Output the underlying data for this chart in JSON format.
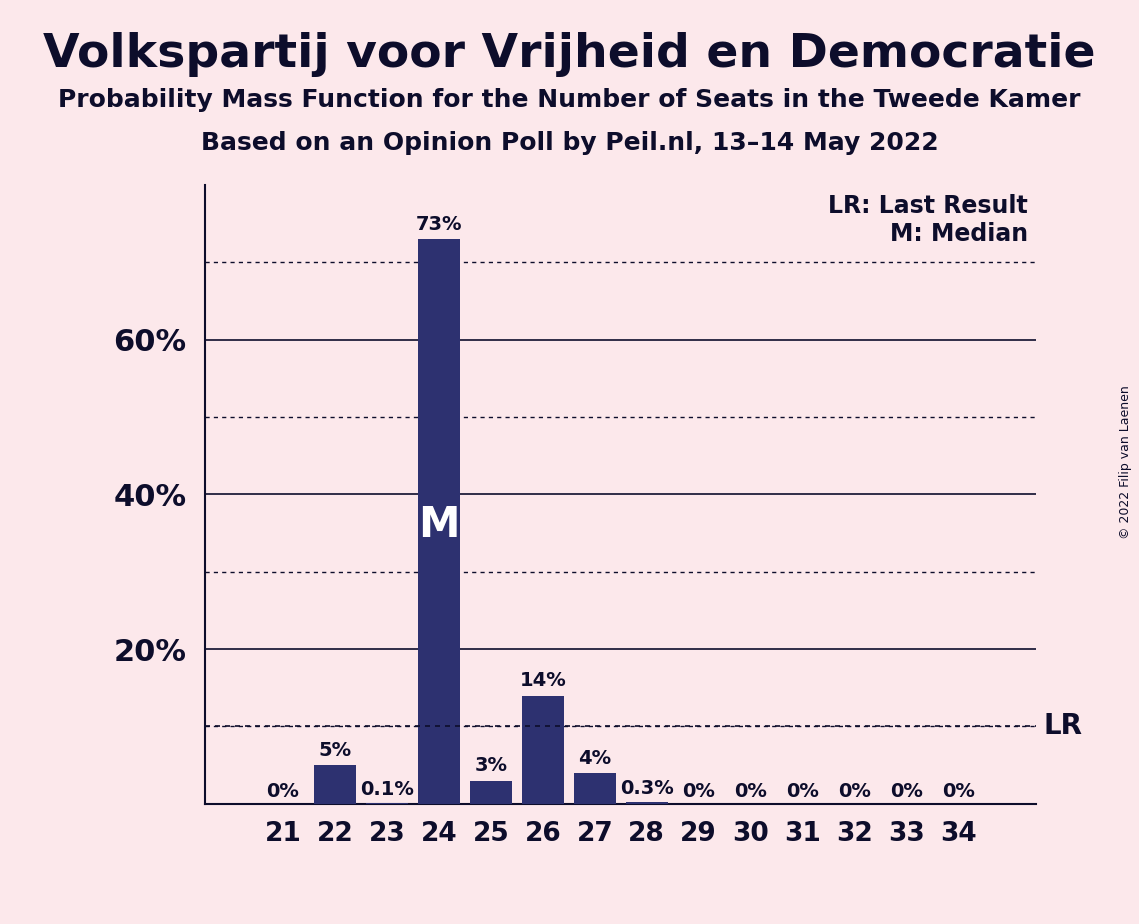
{
  "title": "Volkspartij voor Vrijheid en Democratie",
  "subtitle1": "Probability Mass Function for the Number of Seats in the Tweede Kamer",
  "subtitle2": "Based on an Opinion Poll by Peil.nl, 13–14 May 2022",
  "copyright": "© 2022 Filip van Laenen",
  "seats": [
    21,
    22,
    23,
    24,
    25,
    26,
    27,
    28,
    29,
    30,
    31,
    32,
    33,
    34
  ],
  "probabilities": [
    0.0,
    5.0,
    0.1,
    73.0,
    3.0,
    14.0,
    4.0,
    0.3,
    0.0,
    0.0,
    0.0,
    0.0,
    0.0,
    0.0
  ],
  "labels": [
    "0%",
    "5%",
    "0.1%",
    "73%",
    "3%",
    "14%",
    "4%",
    "0.3%",
    "0%",
    "0%",
    "0%",
    "0%",
    "0%",
    "0%"
  ],
  "bar_color": "#2d3170",
  "background_color": "#fce8eb",
  "text_color": "#0d0d2b",
  "lr_value": 10.0,
  "median_seat": 24,
  "yticks_solid": [
    20,
    40,
    60
  ],
  "yticks_dotted": [
    10,
    30,
    50,
    70
  ],
  "ylim": [
    0,
    80
  ],
  "xlim_left": 19.5,
  "xlim_right": 35.5,
  "legend_lr": "LR: Last Result",
  "legend_m": "M: Median",
  "title_fontsize": 34,
  "subtitle_fontsize": 18,
  "label_fontsize": 14,
  "tick_fontsize": 19,
  "ytick_fontsize": 22,
  "legend_fontsize": 17,
  "lr_fontsize": 20,
  "m_fontsize": 30
}
